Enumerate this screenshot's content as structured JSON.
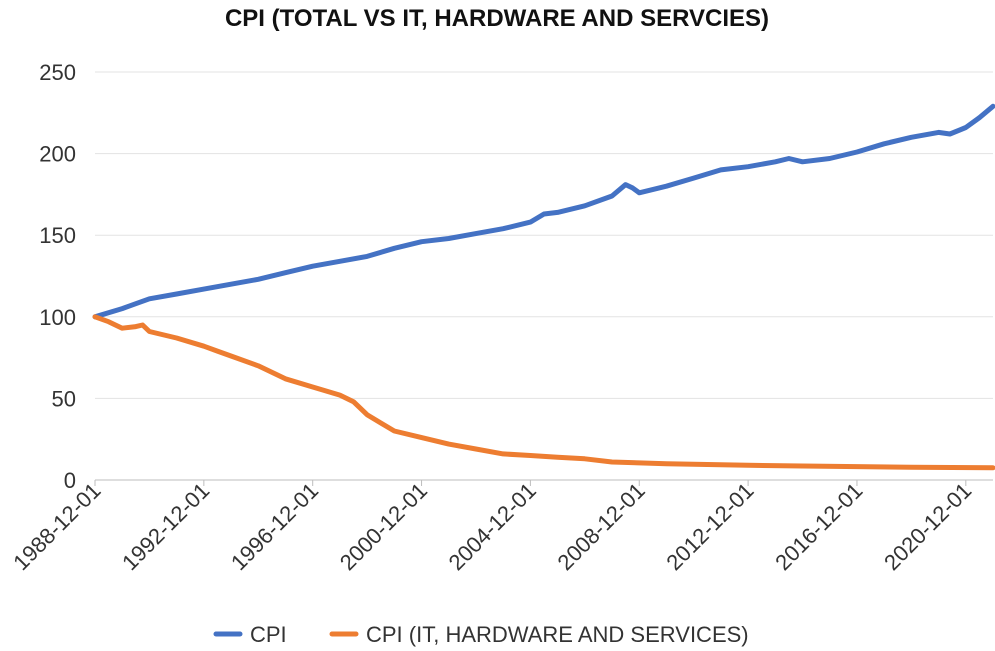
{
  "chart_data": {
    "type": "line",
    "title": "CPI (TOTAL VS IT, HARDWARE AND SERVCIES)",
    "xlabel": "",
    "ylabel": "",
    "ylim": [
      0,
      250
    ],
    "yticks": [
      "0",
      "50",
      "100",
      "150",
      "200",
      "250"
    ],
    "xticks": [
      "1988-12-01",
      "1992-12-01",
      "1996-12-01",
      "2000-12-01",
      "2004-12-01",
      "2008-12-01",
      "2012-12-01",
      "2016-12-01",
      "2020-12-01"
    ],
    "xlim": [
      "1988-12-01",
      "2021-12-01"
    ],
    "grid": true,
    "legend_position": "bottom",
    "series": [
      {
        "name": "CPI",
        "color": "#4472C4",
        "x": [
          "1988-12-01",
          "1989-12-01",
          "1990-06-01",
          "1990-12-01",
          "1991-12-01",
          "1992-12-01",
          "1993-12-01",
          "1994-12-01",
          "1995-12-01",
          "1996-12-01",
          "1997-12-01",
          "1998-12-01",
          "1999-12-01",
          "2000-12-01",
          "2001-12-01",
          "2002-12-01",
          "2003-12-01",
          "2004-12-01",
          "2005-06-01",
          "2005-12-01",
          "2006-12-01",
          "2007-12-01",
          "2008-06-01",
          "2008-09-01",
          "2008-12-01",
          "2009-12-01",
          "2010-12-01",
          "2011-12-01",
          "2012-12-01",
          "2013-12-01",
          "2014-06-01",
          "2014-12-01",
          "2015-12-01",
          "2016-12-01",
          "2017-12-01",
          "2018-12-01",
          "2019-12-01",
          "2020-05-01",
          "2020-12-01",
          "2021-06-01",
          "2021-12-01"
        ],
        "values": [
          100,
          105,
          108,
          111,
          114,
          117,
          120,
          123,
          127,
          131,
          134,
          137,
          142,
          146,
          148,
          151,
          154,
          158,
          163,
          164,
          168,
          174,
          181,
          179,
          176,
          180,
          185,
          190,
          192,
          195,
          197,
          195,
          197,
          201,
          206,
          210,
          213,
          212,
          216,
          222,
          229
        ]
      },
      {
        "name": "CPI (IT, HARDWARE AND SERVICES)",
        "color": "#ED7D31",
        "x": [
          "1988-12-01",
          "1989-06-01",
          "1989-12-01",
          "1990-06-01",
          "1990-09-01",
          "1990-12-01",
          "1991-12-01",
          "1992-12-01",
          "1993-06-01",
          "1993-12-01",
          "1994-12-01",
          "1995-12-01",
          "1996-12-01",
          "1997-12-01",
          "1998-06-01",
          "1998-12-01",
          "1999-06-01",
          "1999-12-01",
          "2000-12-01",
          "2001-12-01",
          "2002-12-01",
          "2003-12-01",
          "2004-12-01",
          "2005-12-01",
          "2006-12-01",
          "2007-12-01",
          "2008-12-01",
          "2009-12-01",
          "2010-12-01",
          "2012-12-01",
          "2014-12-01",
          "2016-12-01",
          "2018-12-01",
          "2021-12-01"
        ],
        "values": [
          100,
          97,
          93,
          94,
          95,
          91,
          87,
          82,
          79,
          76,
          70,
          62,
          57,
          52,
          48,
          40,
          35,
          30,
          26,
          22,
          19,
          16,
          15,
          14,
          13,
          11,
          10.5,
          10,
          9.7,
          9,
          8.6,
          8.2,
          7.8,
          7.5
        ]
      }
    ]
  }
}
